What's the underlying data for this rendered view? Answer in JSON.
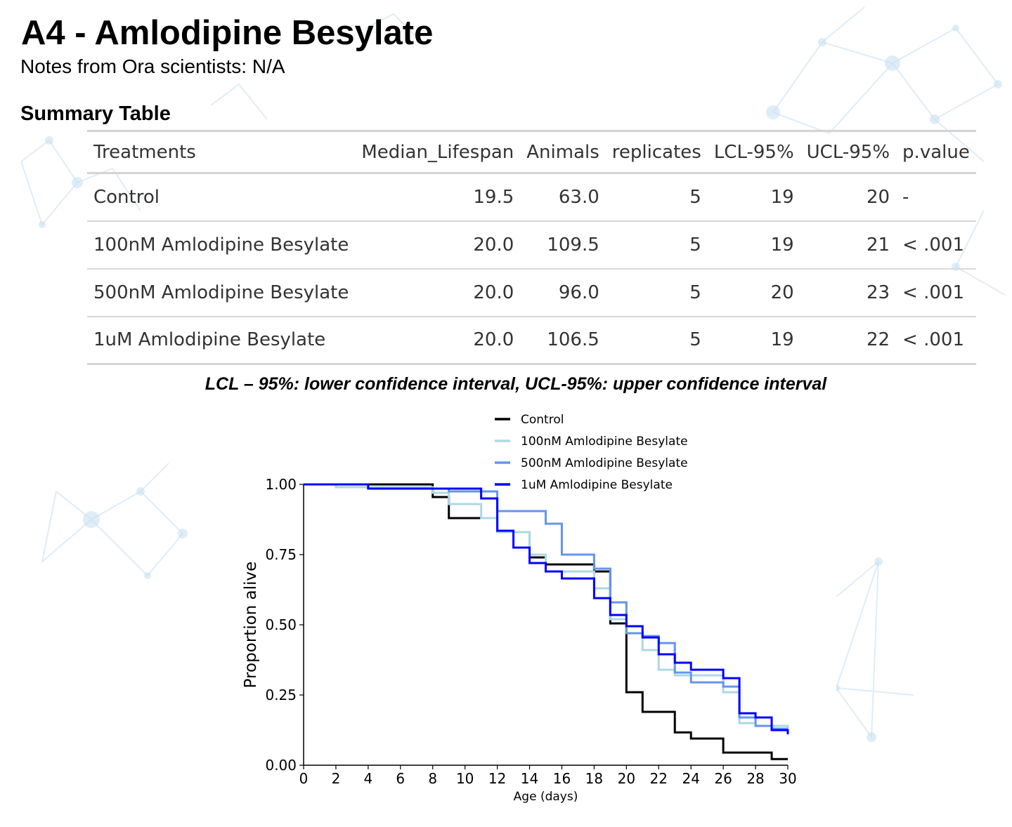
{
  "header": {
    "title": "A4 - Amlodipine Besylate",
    "notes": "Notes from Ora scientists: N/A"
  },
  "summary": {
    "title": "Summary Table",
    "columns": [
      "Treatments",
      "Median_Lifespan",
      "Animals",
      "replicates",
      "LCL-95%",
      "UCL-95%",
      "p.value"
    ],
    "rows": [
      [
        "Control",
        "19.5",
        "63.0",
        "5",
        "19",
        "20",
        "-"
      ],
      [
        "100nM Amlodipine Besylate",
        "20.0",
        "109.5",
        "5",
        "19",
        "21",
        "< .001"
      ],
      [
        "500nM Amlodipine Besylate",
        "20.0",
        "96.0",
        "5",
        "20",
        "23",
        "< .001"
      ],
      [
        "1uM Amlodipine Besylate",
        "20.0",
        "106.5",
        "5",
        "19",
        "22",
        "< .001"
      ]
    ],
    "caption": "LCL – 95%: lower confidence interval, UCL-95%: upper confidence interval"
  },
  "chart_data": {
    "type": "line",
    "xlabel": "Age (days)",
    "ylabel": "Proportion alive",
    "xlim": [
      0,
      30
    ],
    "ylim": [
      0,
      1
    ],
    "xticks": [
      0,
      2,
      4,
      6,
      8,
      10,
      12,
      14,
      16,
      18,
      20,
      22,
      24,
      26,
      28,
      30
    ],
    "yticks": [
      0.0,
      0.25,
      0.5,
      0.75,
      1.0
    ],
    "ytick_labels": [
      "0.00",
      "0.25",
      "0.50",
      "0.75",
      "1.00"
    ],
    "legend_position": "top-center",
    "series": [
      {
        "name": "Control",
        "color": "#000000",
        "x": [
          0,
          8,
          9,
          12,
          14,
          15,
          18,
          19,
          20,
          21,
          23,
          24,
          26,
          29,
          30
        ],
        "y": [
          1.0,
          0.955,
          0.88,
          0.83,
          0.74,
          0.715,
          0.69,
          0.505,
          0.26,
          0.19,
          0.117,
          0.095,
          0.045,
          0.022,
          0.022
        ]
      },
      {
        "name": "100nM Amlodipine Besylate",
        "color": "#add8e6",
        "x": [
          0,
          2,
          8,
          9,
          11,
          12,
          14,
          15,
          18,
          19,
          20,
          21,
          22,
          23,
          26,
          27,
          28,
          30
        ],
        "y": [
          1.0,
          0.99,
          0.97,
          0.93,
          0.88,
          0.83,
          0.75,
          0.69,
          0.63,
          0.52,
          0.47,
          0.41,
          0.34,
          0.32,
          0.26,
          0.15,
          0.14,
          0.13
        ]
      },
      {
        "name": "500nM Amlodipine Besylate",
        "color": "#6495ed",
        "x": [
          0,
          4,
          9,
          12,
          15,
          16,
          18,
          19,
          20,
          21,
          22,
          23,
          24,
          26,
          27,
          28,
          29,
          30
        ],
        "y": [
          1.0,
          0.985,
          0.975,
          0.905,
          0.86,
          0.75,
          0.7,
          0.58,
          0.47,
          0.46,
          0.435,
          0.33,
          0.295,
          0.28,
          0.17,
          0.14,
          0.13,
          0.13
        ]
      },
      {
        "name": "1uM Amlodipine Besylate",
        "color": "#0000ff",
        "x": [
          0,
          4,
          11,
          12,
          13,
          14,
          15,
          16,
          18,
          19,
          20,
          21,
          22,
          23,
          24,
          26,
          27,
          28,
          29,
          30
        ],
        "y": [
          1.0,
          0.985,
          0.95,
          0.835,
          0.775,
          0.72,
          0.69,
          0.665,
          0.595,
          0.535,
          0.495,
          0.455,
          0.395,
          0.365,
          0.34,
          0.31,
          0.185,
          0.17,
          0.125,
          0.11
        ]
      }
    ]
  }
}
